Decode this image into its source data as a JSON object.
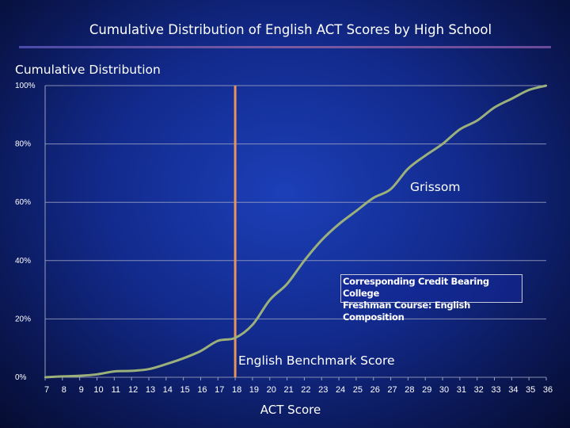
{
  "page": {
    "title": "Cumulative Distribution of English ACT Scores by High School",
    "y_axis_title": "Cumulative Distribution",
    "x_axis_title": "ACT Score"
  },
  "colors": {
    "curve": "#9bb07a",
    "benchmark_line": "#e8935a",
    "grid": "#9aa0c0",
    "text": "#ffffff"
  },
  "annotations": {
    "series_label": "Grissom",
    "benchmark_label": "English Benchmark Score",
    "callout_line1": "Corresponding Credit Bearing College",
    "callout_line2": "Freshman Course: English Composition"
  },
  "chart_data": {
    "type": "line",
    "title": "Cumulative Distribution of English ACT Scores by High School",
    "xlabel": "ACT Score",
    "ylabel": "Cumulative Distribution",
    "xlim": [
      7,
      36
    ],
    "ylim": [
      0,
      100
    ],
    "y_ticks": [
      "0%",
      "20%",
      "40%",
      "60%",
      "80%",
      "100%"
    ],
    "y_tick_values": [
      0,
      20,
      40,
      60,
      80,
      100
    ],
    "grid": true,
    "benchmark_x": 18,
    "x": [
      7,
      8,
      9,
      10,
      11,
      12,
      13,
      14,
      15,
      16,
      17,
      18,
      19,
      20,
      21,
      22,
      23,
      24,
      25,
      26,
      27,
      28,
      29,
      30,
      31,
      32,
      33,
      34,
      35,
      36
    ],
    "series": [
      {
        "name": "Grissom",
        "values": [
          0,
          0.3,
          0.5,
          1,
          2,
          2.2,
          2.8,
          4.5,
          6.5,
          9,
          12.5,
          13.5,
          18,
          26.5,
          32,
          40,
          47,
          52.5,
          57,
          61.5,
          64.5,
          71.5,
          76,
          80,
          85,
          88,
          92.5,
          95.5,
          98.5,
          100
        ]
      }
    ]
  }
}
